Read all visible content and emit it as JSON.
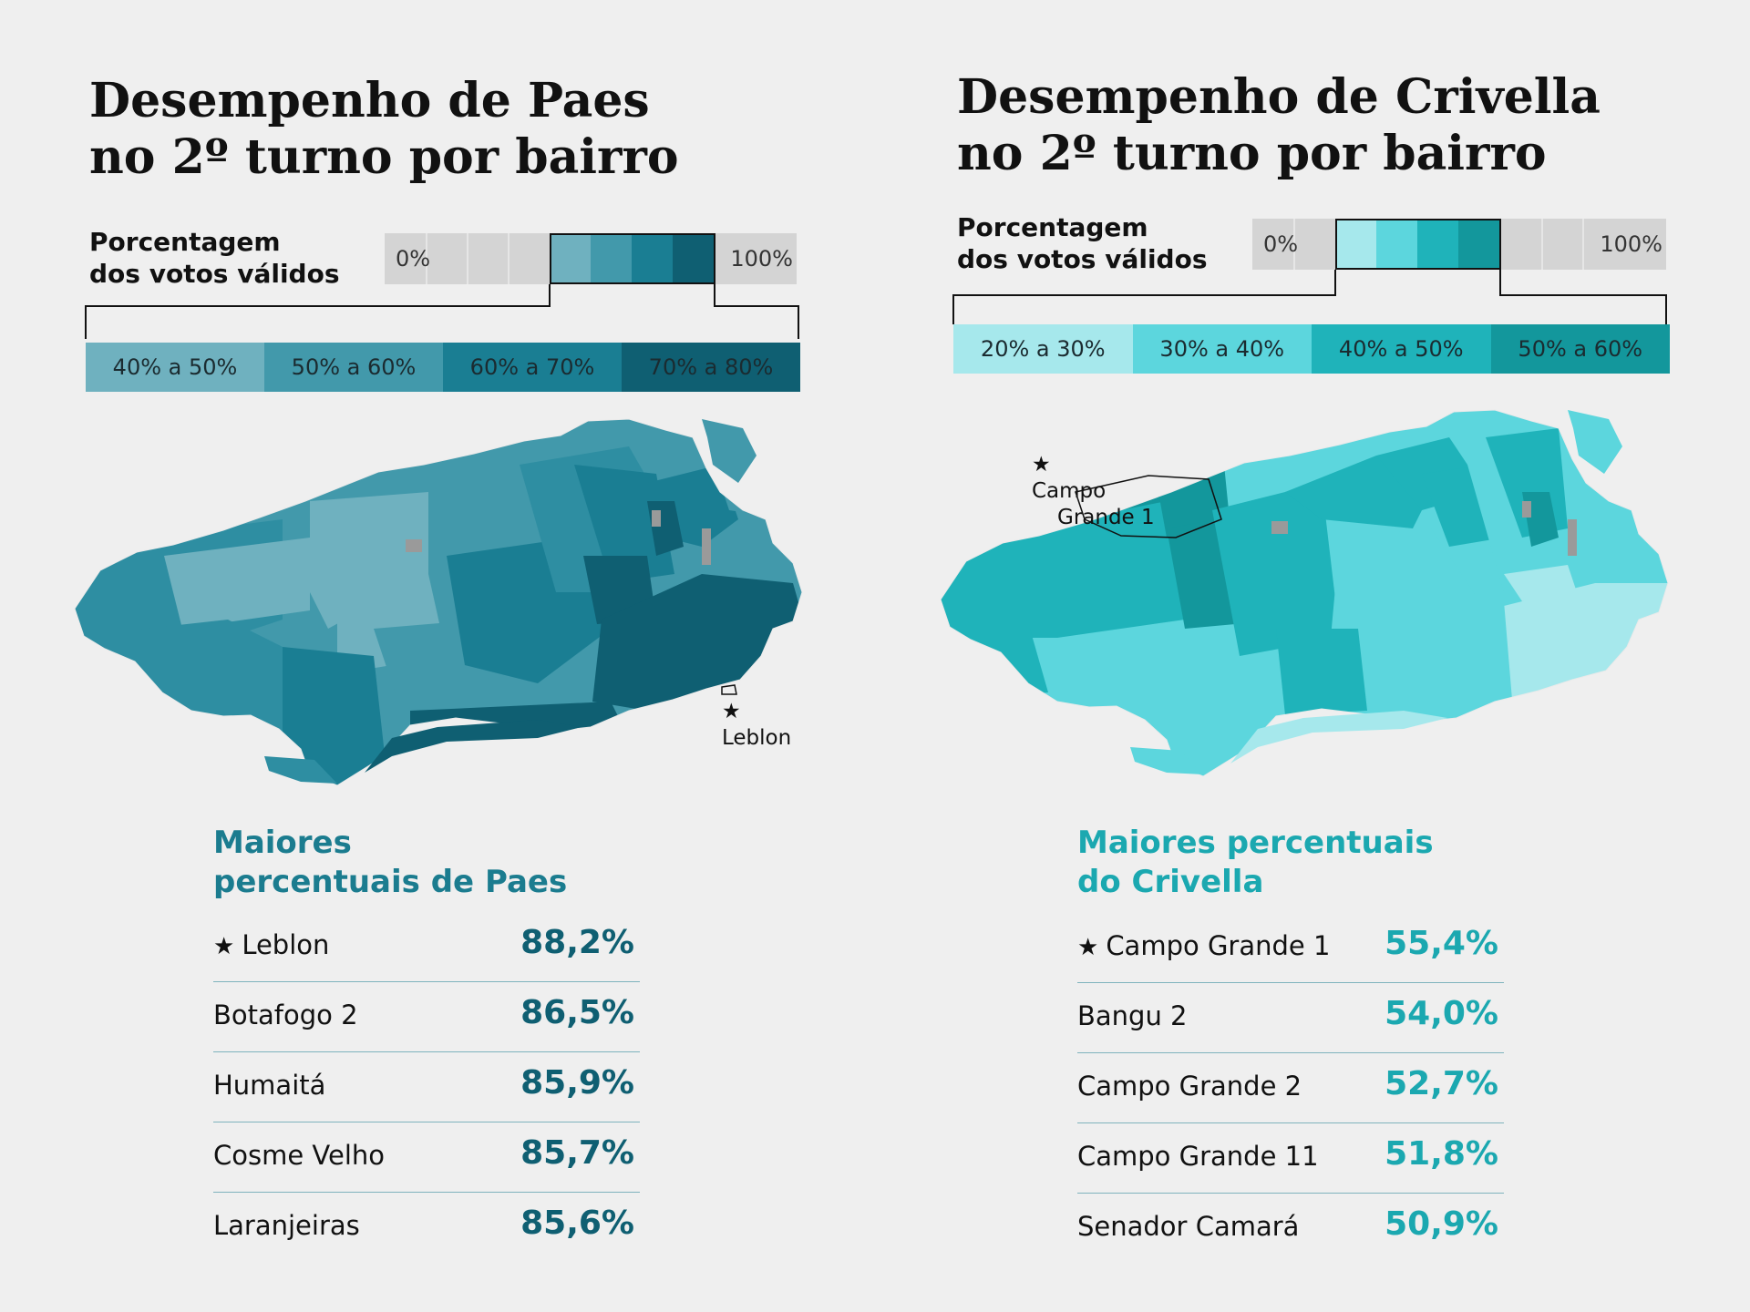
{
  "paes": {
    "title_line1": "Desempenho de Paes",
    "title_line2": "no 2º turno  por bairro",
    "legend_label_line1": "Porcentagem",
    "legend_label_line2": "dos votos válidos",
    "scale_min": "0%",
    "scale_max": "100%",
    "classes": [
      {
        "label": "40% a 50%",
        "color": "#6fb1bf"
      },
      {
        "label": "50% a 60%",
        "color": "#4299ab"
      },
      {
        "label": "60% a 70%",
        "color": "#1a7e93"
      },
      {
        "label": "70% a 80%",
        "color": "#0f5f72"
      }
    ],
    "map_annotation": "Leblon",
    "ranking_title_line1": "Maiores",
    "ranking_title_line2": "percentuais de Paes",
    "ranking_color": "#1b7c8f",
    "value_color": "#0f5f72",
    "ranking": [
      {
        "name": "Leblon",
        "value": "88,2%",
        "star": "★"
      },
      {
        "name": "Botafogo 2",
        "value": "86,5%",
        "star": ""
      },
      {
        "name": "Humaitá",
        "value": "85,9%",
        "star": ""
      },
      {
        "name": "Cosme Velho",
        "value": "85,7%",
        "star": ""
      },
      {
        "name": "Laranjeiras",
        "value": "85,6%",
        "star": ""
      }
    ]
  },
  "crivella": {
    "title_line1": "Desempenho de Crivella",
    "title_line2": "no 2º turno  por bairro",
    "legend_label_line1": "Porcentagem",
    "legend_label_line2": "dos votos válidos",
    "scale_min": "0%",
    "scale_max": "100%",
    "classes": [
      {
        "label": "20% a 30%",
        "color": "#a6e8ec"
      },
      {
        "label": "30% a 40%",
        "color": "#5cd6dd"
      },
      {
        "label": "40% a 50%",
        "color": "#1fb3ba"
      },
      {
        "label": "50% a 60%",
        "color": "#13979c"
      }
    ],
    "map_annotation_line1": "Campo",
    "map_annotation_line2": "Grande 1",
    "ranking_title_line1": "Maiores percentuais",
    "ranking_title_line2": "do Crivella",
    "ranking_color": "#1ba8b0",
    "value_color": "#1ba8b0",
    "ranking": [
      {
        "name": "Campo Grande 1",
        "value": "55,4%",
        "star": "★"
      },
      {
        "name": "Bangu 2",
        "value": "54,0%",
        "star": ""
      },
      {
        "name": "Campo Grande 2",
        "value": "52,7%",
        "star": ""
      },
      {
        "name": "Campo Grande 11",
        "value": "51,8%",
        "star": ""
      },
      {
        "name": "Senador Camará",
        "value": "50,9%",
        "star": ""
      }
    ]
  }
}
